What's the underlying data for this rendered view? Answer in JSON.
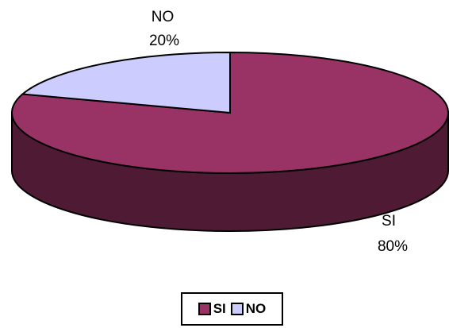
{
  "chart_data": {
    "type": "pie",
    "title": "",
    "categories": [
      "SI",
      "NO"
    ],
    "values": [
      80,
      20
    ],
    "data_labels": [
      {
        "category": "SI",
        "percent": "80%"
      },
      {
        "category": "NO",
        "percent": "20%"
      }
    ],
    "colors": {
      "SI": "#993366",
      "NO": "#CCCCFF"
    },
    "side_colors": {
      "SI": "#4E1A34",
      "NO": "#7F7FB2"
    },
    "style": "3d",
    "legend_position": "bottom"
  },
  "legend": {
    "items": [
      {
        "label": "SI",
        "color": "#993366"
      },
      {
        "label": "NO",
        "color": "#CCCCFF"
      }
    ]
  }
}
